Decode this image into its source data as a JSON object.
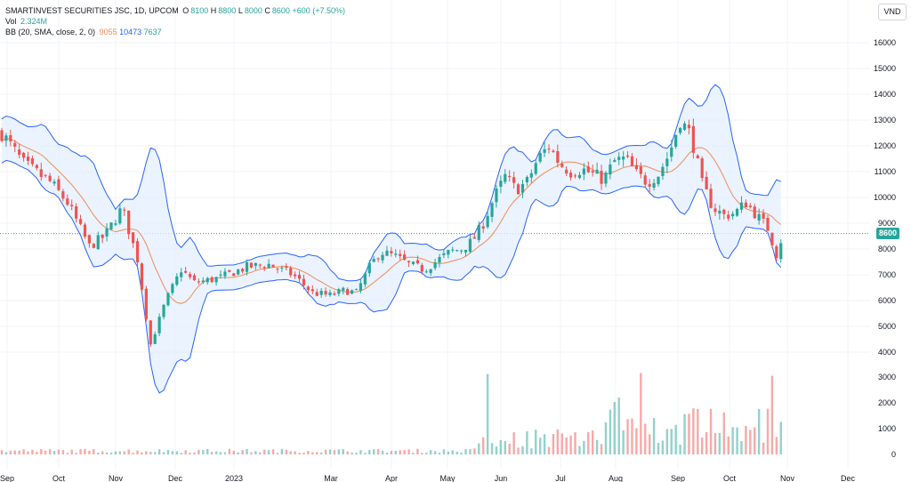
{
  "legend": {
    "symbol": "SMARTINVEST SECURITIES JSC, 1D, UPCOM",
    "open_label": "O",
    "open": "8100",
    "high_label": "H",
    "high": "8800",
    "low_label": "L",
    "low": "8000",
    "close_label": "C",
    "close": "8600",
    "change": "+600 (+7.50%)",
    "vol_label": "Vol",
    "vol": "2.324M",
    "bb_label": "BB (20, SMA, close, 2, 0)",
    "bb_basis": "9055",
    "bb_upper": "10473",
    "bb_lower": "7637"
  },
  "currency": "VND",
  "last_price_tag": "8600",
  "colors": {
    "up": "#26a69a",
    "down": "#ef5350",
    "basis": "#f28b53",
    "band": "#2962ff",
    "band_fill": "#e3efff"
  },
  "chart_data": {
    "type": "candlestick",
    "price_axis": {
      "ticks": [
        16000,
        15000,
        14000,
        13000,
        12000,
        11000,
        10000,
        9000,
        8000,
        7000,
        6000,
        5000,
        4000
      ]
    },
    "volume_axis": {
      "ticks": [
        3000,
        2000,
        1000,
        0
      ]
    },
    "x_ticks": [
      "Sep",
      "Oct",
      "Nov",
      "Dec",
      "2023",
      "Mar",
      "Apr",
      "May",
      "Jun",
      "Jul",
      "Aug",
      "Sep",
      "Oct",
      "Nov",
      "Dec"
    ],
    "last_price": 8600,
    "close_path": [
      [
        0,
        12500
      ],
      [
        10,
        11300
      ],
      [
        22,
        10600
      ],
      [
        30,
        9800
      ],
      [
        40,
        8100
      ],
      [
        47,
        8500
      ],
      [
        55,
        9600
      ],
      [
        62,
        7600
      ],
      [
        68,
        4300
      ],
      [
        75,
        6000
      ],
      [
        82,
        7200
      ],
      [
        88,
        6700
      ],
      [
        95,
        6800
      ],
      [
        100,
        6900
      ],
      [
        112,
        7300
      ],
      [
        122,
        7400
      ],
      [
        133,
        7000
      ],
      [
        142,
        6300
      ],
      [
        150,
        6200
      ],
      [
        157,
        6400
      ],
      [
        162,
        6300
      ],
      [
        168,
        7300
      ],
      [
        173,
        7900
      ],
      [
        180,
        7700
      ],
      [
        186,
        7400
      ],
      [
        193,
        7200
      ],
      [
        198,
        7500
      ],
      [
        205,
        7900
      ],
      [
        210,
        8000
      ],
      [
        215,
        8300
      ],
      [
        220,
        9000
      ],
      [
        225,
        10000
      ],
      [
        230,
        10800
      ],
      [
        235,
        10300
      ],
      [
        240,
        10600
      ],
      [
        245,
        11500
      ],
      [
        250,
        12000
      ],
      [
        255,
        11300
      ],
      [
        260,
        11000
      ],
      [
        265,
        11100
      ],
      [
        270,
        10900
      ],
      [
        275,
        10700
      ],
      [
        280,
        11400
      ],
      [
        285,
        11500
      ],
      [
        290,
        10900
      ],
      [
        295,
        10600
      ],
      [
        300,
        10900
      ],
      [
        305,
        11700
      ],
      [
        310,
        13000
      ],
      [
        315,
        12400
      ],
      [
        320,
        10500
      ],
      [
        325,
        9600
      ],
      [
        330,
        9300
      ],
      [
        335,
        9400
      ],
      [
        340,
        9800
      ],
      [
        345,
        9300
      ],
      [
        350,
        8800
      ],
      [
        354,
        7800
      ],
      [
        357,
        8600
      ]
    ]
  }
}
